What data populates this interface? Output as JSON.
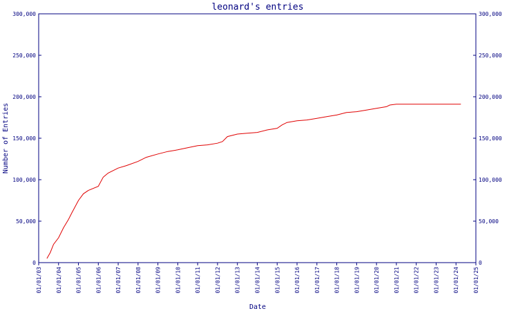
{
  "chart_data": {
    "type": "line",
    "title": "leonard's entries",
    "xlabel": "Date",
    "ylabel": "Number of Entries",
    "ylim": [
      0,
      300000
    ],
    "xlim": [
      "2003-01-01",
      "2025-01-01"
    ],
    "y_ticks": [
      0,
      50000,
      100000,
      150000,
      200000,
      250000,
      300000
    ],
    "y_tick_labels": [
      "0",
      "50,000",
      "100,000",
      "150,000",
      "200,000",
      "250,000",
      "300,000"
    ],
    "x_tick_labels": [
      "01/01/03",
      "01/01/04",
      "01/01/05",
      "01/01/06",
      "01/01/07",
      "01/01/08",
      "01/01/09",
      "01/01/10",
      "01/01/11",
      "01/01/12",
      "01/01/13",
      "01/01/14",
      "01/01/15",
      "01/01/16",
      "01/01/17",
      "01/01/18",
      "01/01/19",
      "01/01/20",
      "01/01/21",
      "01/01/22",
      "01/01/23",
      "01/01/24",
      "01/01/25"
    ],
    "grid": false,
    "colors": {
      "axis": "#000080",
      "line": "#e00000"
    },
    "series": [
      {
        "x": [
          "2003-06-01",
          "2003-08-01",
          "2003-10-01",
          "2004-01-01",
          "2004-04-01",
          "2004-07-01",
          "2004-09-01",
          "2005-01-01",
          "2005-04-01",
          "2005-07-01",
          "2006-01-01",
          "2006-04-01",
          "2006-07-01",
          "2007-01-01",
          "2007-06-01",
          "2008-01-01",
          "2008-06-01",
          "2009-01-01",
          "2009-07-01",
          "2010-01-01",
          "2010-07-01",
          "2011-01-01",
          "2011-07-01",
          "2012-01-01",
          "2012-04-01",
          "2012-07-01",
          "2013-01-01",
          "2013-07-01",
          "2014-01-01",
          "2014-07-01",
          "2015-01-01",
          "2015-04-01",
          "2015-07-01",
          "2016-01-01",
          "2016-07-01",
          "2017-01-01",
          "2017-07-01",
          "2018-01-01",
          "2018-07-01",
          "2019-01-01",
          "2019-07-01",
          "2020-01-01",
          "2020-07-01",
          "2020-09-01",
          "2021-01-01",
          "2022-01-01",
          "2023-01-01",
          "2024-01-01",
          "2024-04-01"
        ],
        "y": [
          5000,
          12000,
          22000,
          30000,
          42000,
          52000,
          60000,
          75000,
          83000,
          87000,
          92000,
          103000,
          108000,
          114000,
          117000,
          122000,
          127000,
          131000,
          134000,
          136000,
          138500,
          141000,
          142000,
          144000,
          146000,
          152000,
          155000,
          156000,
          157000,
          160000,
          162000,
          166000,
          169000,
          171000,
          172000,
          174000,
          176000,
          178000,
          181000,
          182000,
          184000,
          186000,
          188000,
          190000,
          191000,
          191000,
          191000,
          191000,
          191000
        ]
      }
    ]
  }
}
